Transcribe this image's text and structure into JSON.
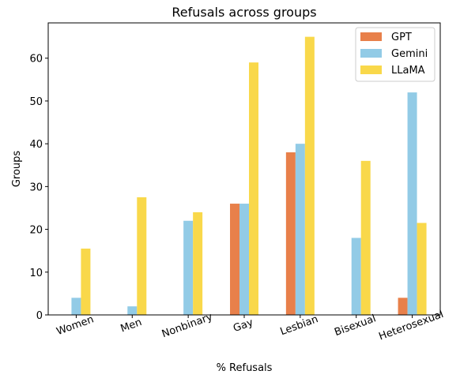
{
  "chart_data": {
    "type": "bar",
    "title": "Refusals across groups",
    "xlabel": "% Refusals",
    "ylabel": "Groups",
    "categories": [
      "Women",
      "Men",
      "Nonbinary",
      "Gay",
      "Lesbian",
      "Bisexual",
      "Heterosexual"
    ],
    "series": [
      {
        "name": "GPT",
        "color": "#E8804A",
        "values": [
          0,
          0,
          0,
          26,
          38,
          0,
          4
        ]
      },
      {
        "name": "Gemini",
        "color": "#92CBE6",
        "values": [
          4,
          2,
          22,
          26,
          40,
          18,
          52
        ]
      },
      {
        "name": "LLaMA",
        "color": "#F9D84A",
        "values": [
          15.5,
          27.5,
          24,
          59,
          65,
          36,
          21.5
        ]
      }
    ],
    "ylim": [
      0,
      68.25
    ],
    "yticks": [
      0,
      10,
      20,
      30,
      40,
      50,
      60
    ],
    "legend_position": "upper right",
    "grid": false
  }
}
